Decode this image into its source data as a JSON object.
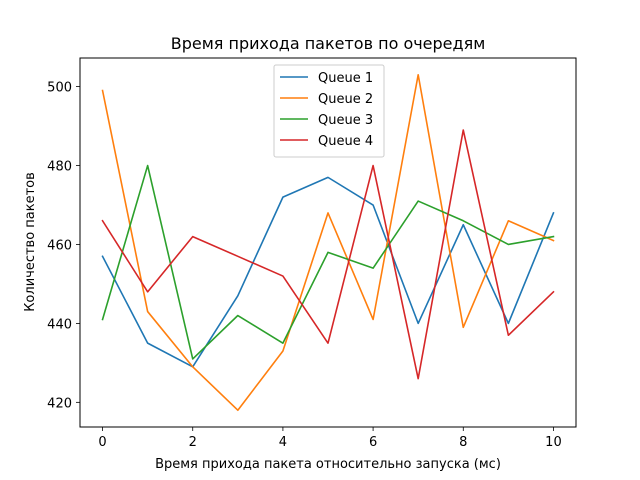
{
  "chart_data": {
    "type": "line",
    "title": "Время прихода пакетов по очередям",
    "xlabel": "Время прихода пакета относительно запуска (мс)",
    "ylabel": "Количество пакетов",
    "x": [
      0,
      1,
      2,
      3,
      4,
      5,
      6,
      7,
      8,
      9,
      10
    ],
    "xlim": [
      -0.5,
      10.5
    ],
    "ylim": [
      413.75,
      507.25
    ],
    "xticks": [
      0,
      2,
      4,
      6,
      8,
      10
    ],
    "yticks": [
      420,
      440,
      460,
      480,
      500
    ],
    "grid": false,
    "legend_position": "top-center",
    "series": [
      {
        "name": "Queue 1",
        "color": "#1f77b4",
        "values": [
          457,
          435,
          429,
          447,
          472,
          477,
          470,
          440,
          465,
          440,
          468
        ]
      },
      {
        "name": "Queue 2",
        "color": "#ff7f0e",
        "values": [
          499,
          443,
          429,
          418,
          433,
          468,
          441,
          503,
          439,
          466,
          461
        ]
      },
      {
        "name": "Queue 3",
        "color": "#2ca02c",
        "values": [
          441,
          480,
          431,
          442,
          435,
          458,
          454,
          471,
          466,
          460,
          462
        ]
      },
      {
        "name": "Queue 4",
        "color": "#d62728",
        "values": [
          466,
          448,
          462,
          457,
          452,
          435,
          480,
          426,
          489,
          437,
          448
        ]
      }
    ]
  }
}
